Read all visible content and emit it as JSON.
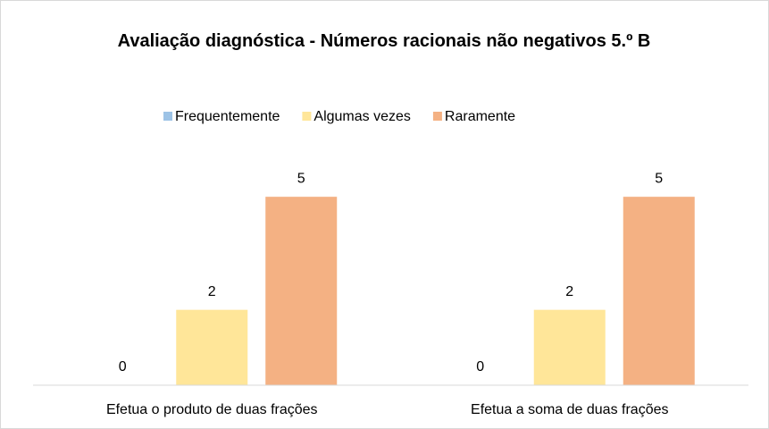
{
  "chart_data": {
    "type": "bar",
    "title": "Avaliação diagnóstica - Números racionais não negativos 5.º B",
    "categories": [
      "Efetua o produto de duas frações",
      "Efetua a soma de duas frações"
    ],
    "series": [
      {
        "name": "Frequentemente",
        "color": "#9dc3e6",
        "values": [
          0,
          0
        ]
      },
      {
        "name": "Algumas vezes",
        "color": "#ffe699",
        "values": [
          2,
          2
        ]
      },
      {
        "name": "Raramente",
        "color": "#f4b183",
        "values": [
          5,
          5
        ]
      }
    ],
    "ylim": [
      0,
      6
    ],
    "legend": "top"
  }
}
